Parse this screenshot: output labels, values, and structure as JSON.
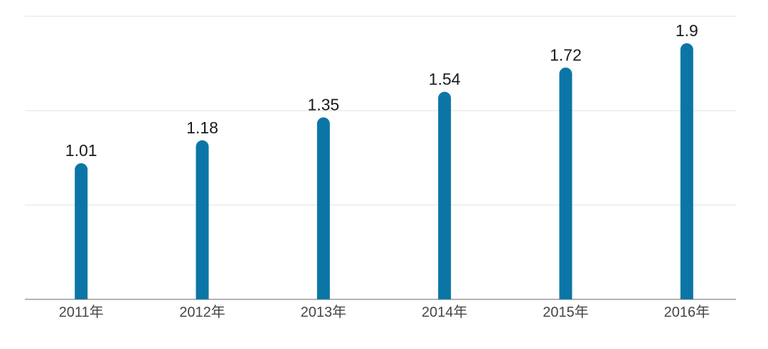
{
  "chart_data": {
    "type": "bar",
    "categories": [
      "2011年",
      "2012年",
      "2013年",
      "2014年",
      "2015年",
      "2016年"
    ],
    "values": [
      1.01,
      1.18,
      1.35,
      1.54,
      1.72,
      1.9
    ],
    "color": "#0b76a6",
    "ylim": [
      0,
      2.1
    ],
    "yticks": [
      0,
      0.7,
      1.4,
      2.1
    ],
    "grid": true
  }
}
